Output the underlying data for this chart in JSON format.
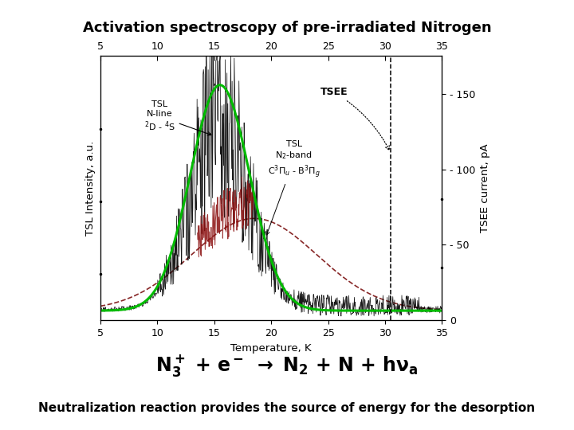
{
  "title": "Activation spectroscopy of pre-irradiated Nitrogen",
  "title_bg": "#90EE90",
  "bottom_bg": "#90EE90",
  "fig_bg": "#ffffff",
  "subtitle": "Neutralization reaction provides the source of energy for the desorption",
  "xlabel": "Temperature, K",
  "ylabel_left": "TSL Intensity, a.u.",
  "ylabel_right": "TSEE current, pA",
  "x_ticks": [
    5,
    10,
    15,
    20,
    25,
    30,
    35
  ],
  "xlim": [
    5,
    35
  ],
  "right_yticks": [
    0,
    50,
    100,
    150
  ],
  "right_ylim": [
    0,
    175
  ],
  "green_curve_color": "#00bb00",
  "dark_red_curve_color": "#7B1010",
  "annotation_TSL_Nline": "TSL\nN-line\n$^2$D - $^4$S",
  "annotation_TSEE": "TSEE",
  "annotation_TSL_N2band": "TSL\nN$_2$-band\nC$^3Π_u$ - B$^3Π_g$"
}
